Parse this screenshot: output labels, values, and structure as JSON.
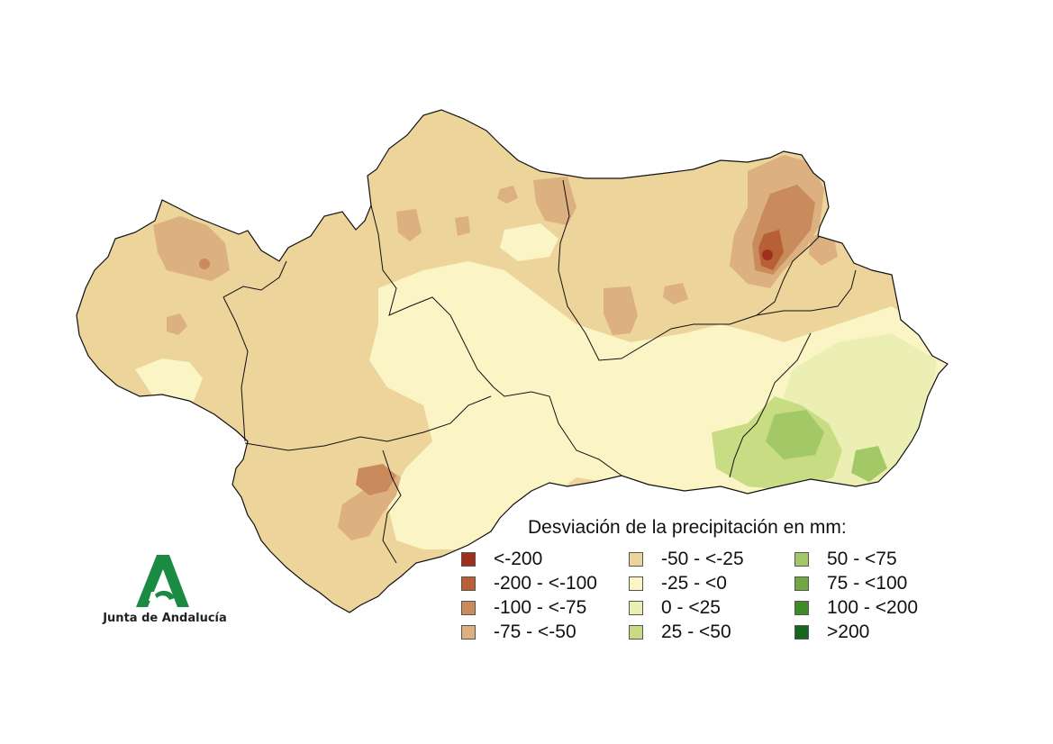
{
  "legend": {
    "title": "Desviación de la precipitación en mm:",
    "classes": [
      {
        "label": "<-200",
        "color": "#a0301e"
      },
      {
        "label": "-200 - <-100",
        "color": "#b86035"
      },
      {
        "label": "-100 - <-75",
        "color": "#c98b5c"
      },
      {
        "label": "-75 - <-50",
        "color": "#ddb07f"
      },
      {
        "label": "-50 - <-25",
        "color": "#ecd49b"
      },
      {
        "label": "-25 - <0",
        "color": "#fbf5c6"
      },
      {
        "label": "0 - <25",
        "color": "#ecefb3"
      },
      {
        "label": "25 - <50",
        "color": "#c8dc84"
      },
      {
        "label": "50 - <75",
        "color": "#a3c866"
      },
      {
        "label": "75 - <100",
        "color": "#6fa83e"
      },
      {
        "label": "100 - <200",
        "color": "#3f8c26"
      },
      {
        "label": ">200",
        "color": "#16651a"
      }
    ]
  },
  "logo": {
    "text": "Junta de Andalucía",
    "color": "#1b8a43"
  }
}
